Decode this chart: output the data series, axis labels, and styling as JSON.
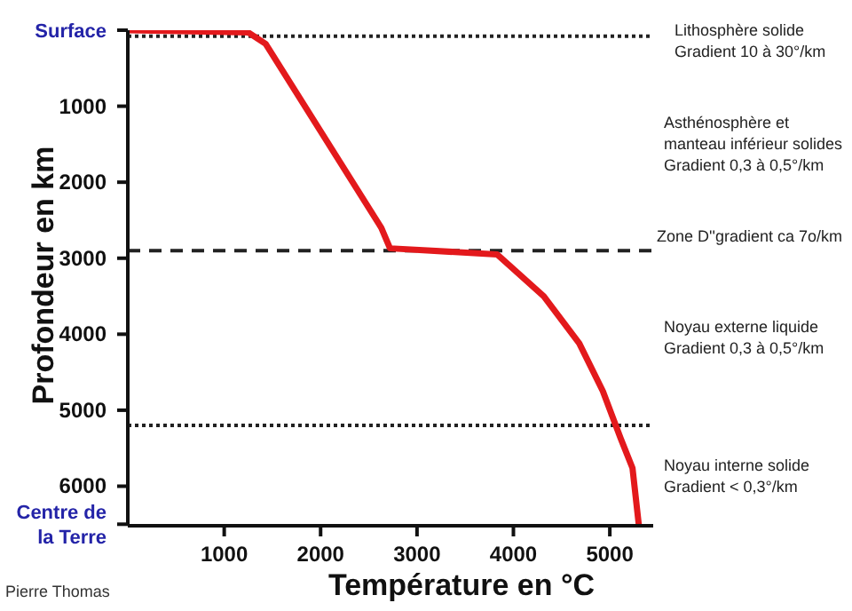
{
  "chart_data": {
    "type": "line",
    "xlabel": "Température en °C",
    "ylabel": "Profondeur en km",
    "x": [
      0,
      1250,
      1430,
      2630,
      2720,
      3830,
      4315,
      4683,
      4928,
      5112,
      5235,
      5300
    ],
    "series": [
      {
        "color": "#e3191c",
        "values": [
          0,
          30,
          180,
          2600,
          2870,
          2950,
          3500,
          4120,
          4750,
          5370,
          5760,
          6500
        ]
      }
    ],
    "xlim": [
      0,
      5450
    ],
    "xticks": [
      1000,
      2000,
      3000,
      4000,
      5000
    ],
    "ylim": [
      6520,
      0
    ],
    "yticks": [
      {
        "value": 0,
        "label": "Surface"
      },
      1000,
      2000,
      3000,
      4000,
      5000,
      6000,
      {
        "value": 6500,
        "label": "Centre de la Terre"
      }
    ],
    "ref_lines": [
      {
        "axis": "y",
        "value": 80,
        "line_style": "dotted",
        "color": "#222222"
      },
      {
        "axis": "y",
        "value": 2900,
        "line_style": "dashed",
        "color": "#222222",
        "label": "Zone D''gradient ca 7o/km"
      },
      {
        "axis": "y",
        "value": 5200,
        "line_style": "dotted",
        "color": "#222222"
      }
    ],
    "annotations": [
      "Lithosphère solide\nGradient 10 à 30°/km",
      "Asthénosphère et\nmanteau inférieur solides\nGradient 0,3 à 0,5°/km",
      "Noyau externe liquide\nGradient 0,3 à 0,5°/km",
      "Noyau interne solide\nGradient < 0,3°/km",
      "Pierre Thomas"
    ],
    "marker": "none",
    "line_style": "solid"
  }
}
